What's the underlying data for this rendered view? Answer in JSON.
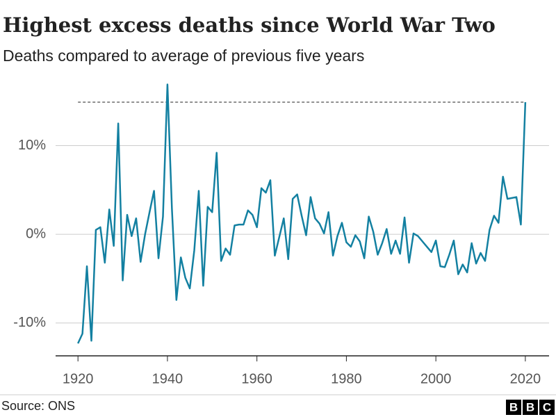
{
  "chart_data": {
    "type": "line",
    "title": "Highest excess deaths since World War Two",
    "subtitle": "Deaths compared to average of previous five years",
    "source": "Source: ONS",
    "logo": [
      "B",
      "B",
      "C"
    ],
    "x": [
      1920,
      1921,
      1922,
      1923,
      1924,
      1925,
      1926,
      1927,
      1928,
      1929,
      1930,
      1931,
      1932,
      1933,
      1934,
      1935,
      1936,
      1937,
      1938,
      1939,
      1940,
      1941,
      1942,
      1943,
      1944,
      1945,
      1946,
      1947,
      1948,
      1949,
      1950,
      1951,
      1952,
      1953,
      1954,
      1955,
      1956,
      1957,
      1958,
      1959,
      1960,
      1961,
      1962,
      1963,
      1964,
      1965,
      1966,
      1967,
      1968,
      1969,
      1970,
      1971,
      1972,
      1973,
      1974,
      1975,
      1976,
      1977,
      1978,
      1979,
      1980,
      1981,
      1982,
      1983,
      1984,
      1985,
      1986,
      1987,
      1988,
      1989,
      1990,
      1991,
      1992,
      1993,
      1994,
      1995,
      1996,
      1997,
      1998,
      1999,
      2000,
      2001,
      2002,
      2003,
      2004,
      2005,
      2006,
      2007,
      2008,
      2009,
      2010,
      2011,
      2012,
      2013,
      2014,
      2015,
      2016,
      2017,
      2018,
      2019,
      2020
    ],
    "series": [
      {
        "color": "#1380a1",
        "values": [
          -12.3,
          -11.2,
          -3.6,
          -12.0,
          0.5,
          0.8,
          -3.2,
          2.8,
          -1.3,
          12.5,
          -5.2,
          2.2,
          -0.2,
          1.8,
          -3.1,
          0.0,
          2.5,
          4.9,
          -2.7,
          2.0,
          16.9,
          2.9,
          -7.4,
          -2.6,
          -4.9,
          -6.1,
          -1.8,
          4.9,
          -5.8,
          3.1,
          2.5,
          9.2,
          -3.0,
          -1.6,
          -2.3,
          1.0,
          1.1,
          1.1,
          2.7,
          2.2,
          0.8,
          5.2,
          4.7,
          6.1,
          -2.4,
          -0.3,
          1.8,
          -2.8,
          4.0,
          4.5,
          2.1,
          -0.1,
          4.2,
          1.8,
          1.2,
          0.1,
          2.5,
          -2.4,
          -0.2,
          1.3,
          -0.9,
          -1.4,
          -0.1,
          -0.8,
          -2.7,
          2.0,
          0.3,
          -2.3,
          -1.0,
          0.6,
          -2.2,
          -0.7,
          -2.2,
          1.9,
          -3.2,
          0.1,
          -0.2,
          -0.8,
          -1.4,
          -2.0,
          -0.7,
          -3.6,
          -3.7,
          -2.3,
          -0.7,
          -4.5,
          -3.4,
          -4.3,
          -1.0,
          -3.3,
          -2.1,
          -3.0,
          0.5,
          2.1,
          1.3,
          6.5,
          4.0,
          4.1,
          4.2,
          1.1,
          14.9
        ]
      }
    ],
    "xlim": [
      1915,
      2025.3
    ],
    "xticks": [
      1920,
      1940,
      1960,
      1980,
      2000,
      2020
    ],
    "ylim": [
      -13.7,
      17.8
    ],
    "yticks": [
      {
        "value": 10,
        "label": "10%"
      },
      {
        "value": 0,
        "label": "0%"
      },
      {
        "value": -10,
        "label": "-10%"
      }
    ],
    "grid": true
  }
}
